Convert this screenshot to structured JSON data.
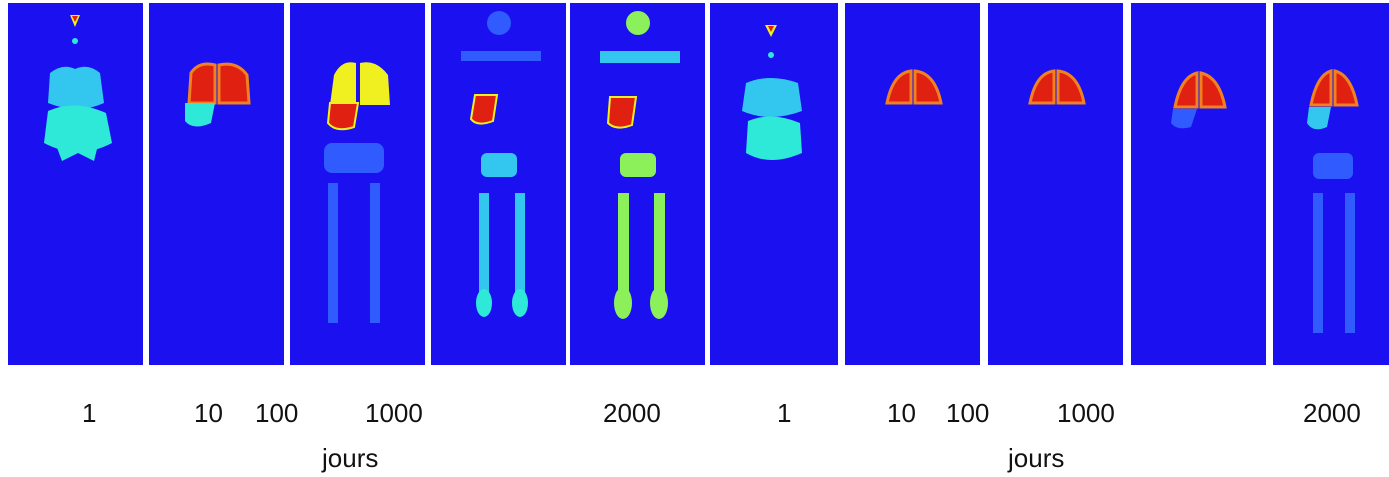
{
  "colors": {
    "background": "#1a10f0",
    "low": "#2f5bff",
    "cyan": "#33c7f0",
    "aqua": "#2ee8d8",
    "lime": "#8cf05a",
    "yellow": "#f0f020",
    "orange": "#f08020",
    "red": "#e02010"
  },
  "left_group": {
    "day_labels": [
      "1",
      "10",
      "100",
      "1000",
      "2000"
    ],
    "axis_title": "jours"
  },
  "right_group": {
    "day_labels": [
      "1",
      "10",
      "100",
      "1000",
      "2000"
    ],
    "axis_title": "jours"
  }
}
